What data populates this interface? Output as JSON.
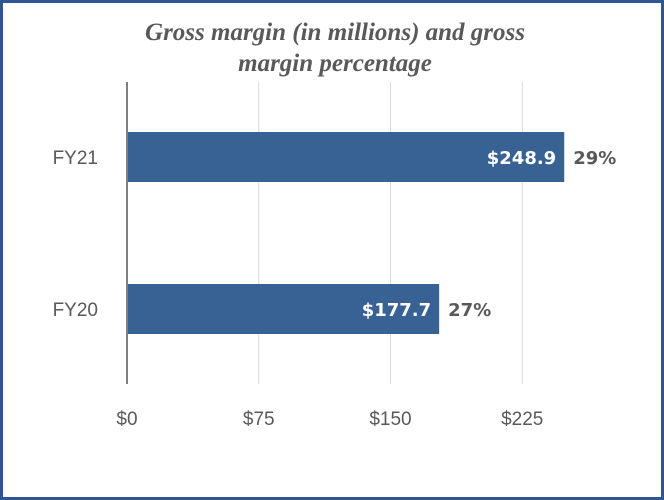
{
  "chart_data": {
    "type": "bar",
    "orientation": "horizontal",
    "title_lines": [
      "Gross margin (in millions) and gross",
      "margin percentage"
    ],
    "categories": [
      "FY21",
      "FY20"
    ],
    "values": [
      248.9,
      177.7
    ],
    "value_labels": [
      "$248.9",
      "$177.7"
    ],
    "percent_labels": [
      "29%",
      "27%"
    ],
    "xlim": [
      0,
      300
    ],
    "xticks": [
      0,
      75,
      150,
      225
    ],
    "xtick_labels": [
      "$0",
      "$75",
      "$150",
      "$225"
    ],
    "xlabel": "",
    "ylabel": "",
    "grid": "vertical",
    "legend": "none",
    "bar_color": "#386194",
    "frame_color": "#2f5592"
  }
}
